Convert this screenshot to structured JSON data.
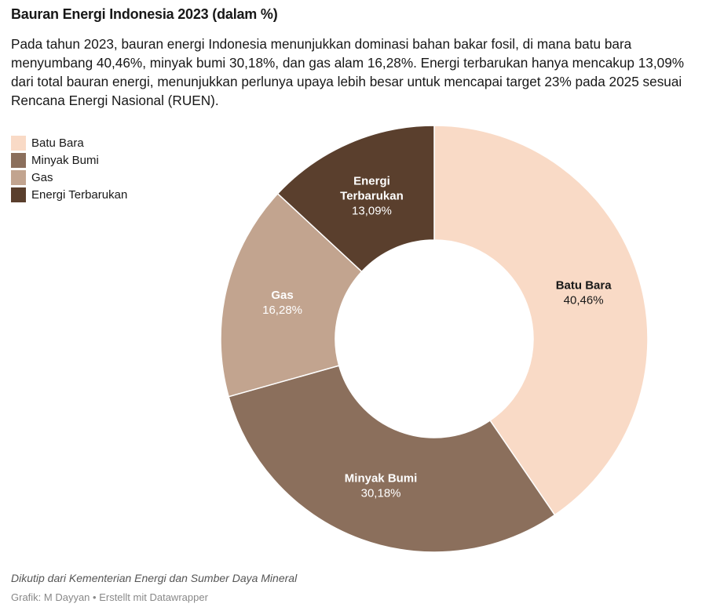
{
  "header": {
    "title": "Bauran Energi Indonesia 2023 (dalam %)",
    "description": "Pada tahun 2023, bauran energi Indonesia menunjukkan dominasi bahan bakar fosil, di mana batu bara menyumbang 40,46%, minyak bumi 30,18%, dan gas alam 16,28%. Energi terbarukan hanya mencakup 13,09% dari total bauran energi, menunjukkan perlunya upaya lebih besar untuk mencapai target 23% pada 2025 sesuai Rencana Energi Nasional (RUEN)."
  },
  "chart_data": {
    "type": "pie",
    "donut": true,
    "title": "Bauran Energi Indonesia 2023 (dalam %)",
    "legend_position": "top-left",
    "slices": [
      {
        "name": "Batu Bara",
        "value": 40.46,
        "label": "40,46%",
        "color": "#f9dac6",
        "label_color": "#181818",
        "label_lines": [
          "Batu Bara"
        ]
      },
      {
        "name": "Minyak Bumi",
        "value": 30.18,
        "label": "30,18%",
        "color": "#8b6f5c",
        "label_color": "#ffffff",
        "label_lines": [
          "Minyak Bumi"
        ]
      },
      {
        "name": "Gas",
        "value": 16.28,
        "label": "16,28%",
        "color": "#c2a48f",
        "label_color": "#ffffff",
        "label_lines": [
          "Gas"
        ]
      },
      {
        "name": "Energi Terbarukan",
        "value": 13.09,
        "label": "13,09%",
        "color": "#5a3f2d",
        "label_color": "#ffffff",
        "label_lines": [
          "Energi",
          "Terbarukan"
        ]
      }
    ]
  },
  "footer": {
    "source": "Dikutip dari Kementerian Energi dan Sumber Daya Mineral",
    "credit": "Grafik: M Dayyan • Erstellt mit Datawrapper"
  }
}
